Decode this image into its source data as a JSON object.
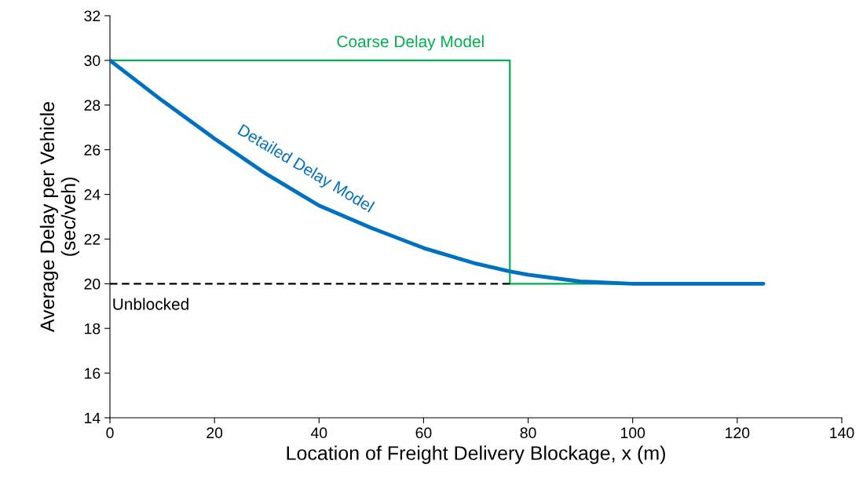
{
  "chart_data": {
    "type": "line",
    "xlabel": "Location of Freight Delivery Blockage, x (m)",
    "ylabel": "Average Delay per Vehicle\n(sec/veh)",
    "xlim": [
      0,
      140
    ],
    "xticks": [
      0,
      20,
      40,
      60,
      80,
      100,
      120,
      140
    ],
    "ylim": [
      14,
      32
    ],
    "yticks": [
      14,
      16,
      18,
      20,
      22,
      24,
      26,
      28,
      30,
      32
    ],
    "grid": false,
    "marker": "none",
    "series": [
      {
        "type": "step",
        "name": "Coarse Delay Model",
        "color": "#00b050",
        "line_style": "solid",
        "x": [
          0,
          76.5,
          125
        ],
        "values": [
          30,
          20,
          20
        ]
      },
      {
        "type": "line",
        "name": "Unblocked",
        "color": "#000000",
        "line_style": "dashed",
        "x": [
          0,
          76.5
        ],
        "values": [
          20,
          20
        ]
      },
      {
        "name": "Detailed Delay Model",
        "color": "#0070c0",
        "line_style": "solid",
        "x": [
          0,
          10,
          20,
          30,
          40,
          50,
          60,
          70,
          76.5,
          80,
          90,
          100,
          110,
          125
        ],
        "values": [
          30,
          28.2,
          26.5,
          24.9,
          23.5,
          22.5,
          21.6,
          20.9,
          20.55,
          20.4,
          20.1,
          20,
          20,
          20
        ]
      }
    ]
  }
}
